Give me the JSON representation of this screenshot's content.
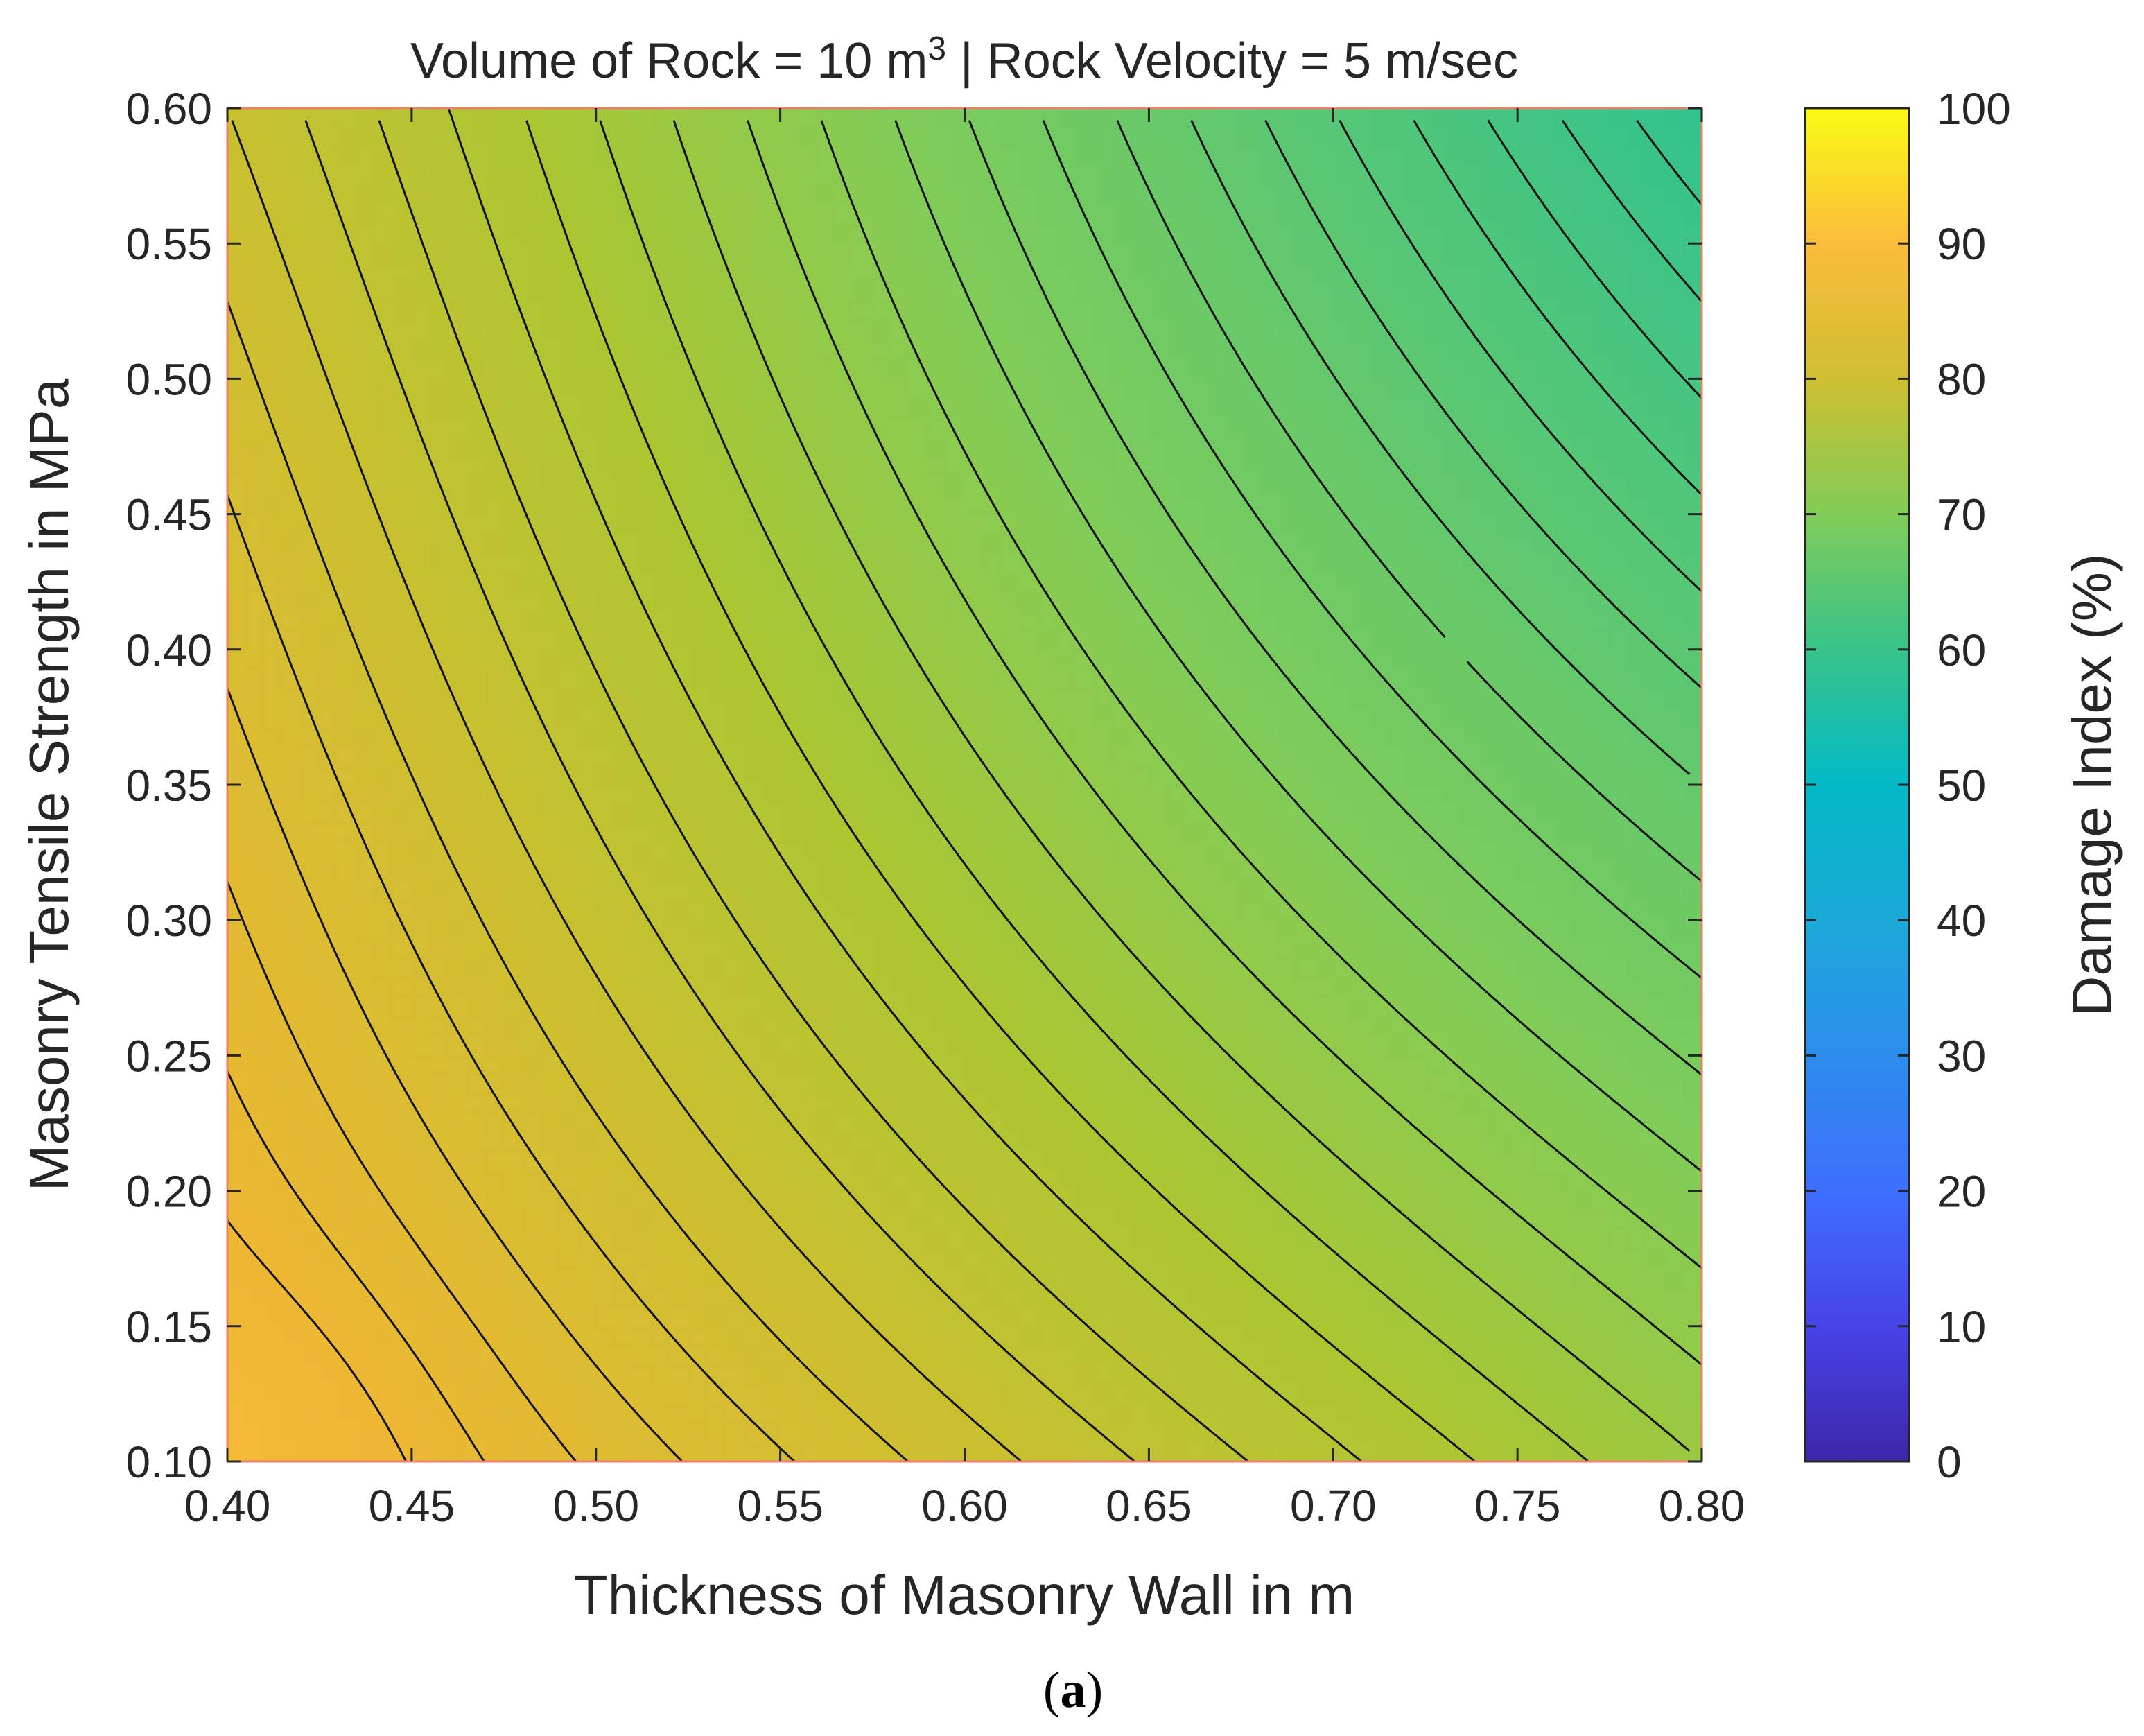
{
  "chart_data": {
    "type": "contour",
    "title_prefix": "Volume of Rock = 10 m",
    "title_superscript": "3",
    "title_suffix": " | Rock Velocity = 5 m/sec",
    "xlabel": "Thickness of Masonry Wall in m",
    "ylabel": "Masonry Tensile Strength in MPa",
    "xlim": [
      0.4,
      0.8
    ],
    "ylim": [
      0.1,
      0.6
    ],
    "xticks": [
      "0.40",
      "0.45",
      "0.50",
      "0.55",
      "0.60",
      "0.65",
      "0.70",
      "0.75",
      "0.80"
    ],
    "yticks": [
      "0.10",
      "0.15",
      "0.20",
      "0.25",
      "0.30",
      "0.35",
      "0.40",
      "0.45",
      "0.50",
      "0.55",
      "0.60"
    ],
    "corner_values": {
      "x0.40_y0.10": 86,
      "x0.80_y0.10": 73,
      "x0.40_y0.60": 79,
      "x0.80_y0.60": 59
    },
    "colorbar": {
      "label": "Damage Index (%)",
      "range": [
        0,
        100
      ],
      "ticks": [
        "0",
        "10",
        "20",
        "30",
        "40",
        "50",
        "60",
        "70",
        "80",
        "90",
        "100"
      ],
      "colormap": "parula"
    },
    "contour_levels": [
      60,
      61,
      62,
      63,
      64,
      65,
      66,
      67,
      68,
      69,
      70,
      71,
      72,
      73,
      74,
      75,
      76,
      77,
      78,
      79,
      80,
      81,
      82,
      83,
      84,
      85
    ],
    "subfigure_label": "a"
  }
}
